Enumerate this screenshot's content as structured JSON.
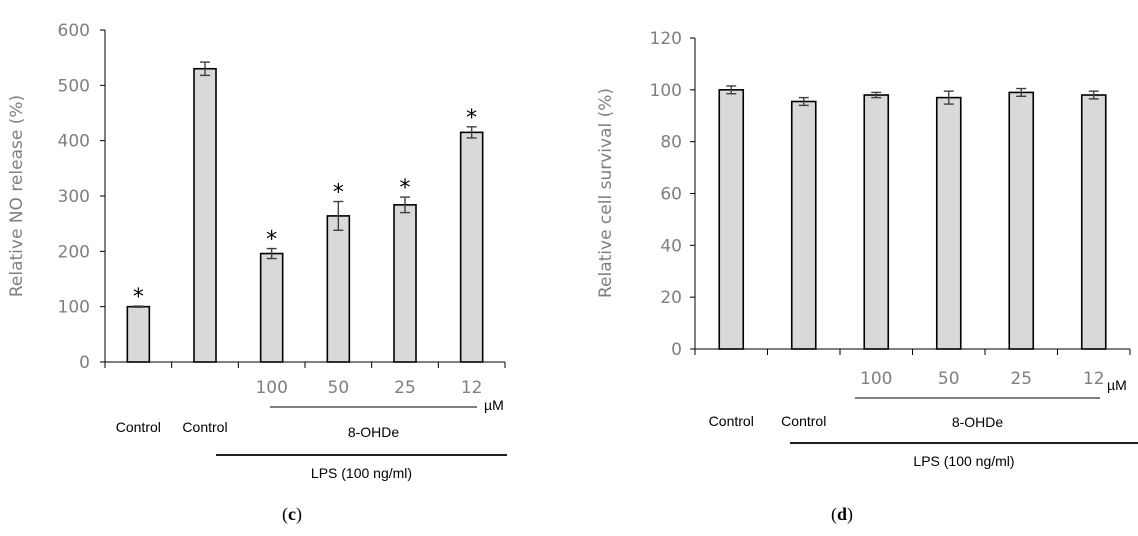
{
  "chart_data": [
    {
      "type": "bar",
      "panel_label": {
        "open": "(",
        "letter": "c",
        "close": ")"
      },
      "ylabel": "Relative NO release (%)",
      "ylim": [
        0,
        600
      ],
      "yticks": [
        0,
        100,
        200,
        300,
        400,
        500,
        600
      ],
      "categories": [
        "Control",
        "Control",
        "100",
        "50",
        "25",
        "12"
      ],
      "values": [
        100,
        530,
        196,
        264,
        284,
        415
      ],
      "errors": [
        1,
        12,
        9,
        26,
        14,
        10
      ],
      "significant": [
        true,
        false,
        true,
        true,
        true,
        true
      ],
      "star_symbol": "*",
      "unit": "µM",
      "treatment_label": "8-OHDe",
      "lps_label": "LPS (100 ng/ml)",
      "grid": false,
      "bar_color": "#d9d9d9"
    },
    {
      "type": "bar",
      "panel_label": {
        "open": "(",
        "letter": "d",
        "close": ")"
      },
      "ylabel": "Relative cell survival (%)",
      "ylim": [
        0,
        120
      ],
      "yticks": [
        0,
        20,
        40,
        60,
        80,
        100,
        120
      ],
      "categories": [
        "Control",
        "Control",
        "100",
        "50",
        "25",
        "12"
      ],
      "values": [
        100,
        95.5,
        98,
        97,
        99,
        98
      ],
      "errors": [
        1.5,
        1.5,
        1,
        2.5,
        1.5,
        1.5
      ],
      "significant": [
        false,
        false,
        false,
        false,
        false,
        false
      ],
      "unit": "µM",
      "treatment_label": "8-OHDe",
      "lps_label": "LPS (100 ng/ml)",
      "grid": false,
      "bar_color": "#d9d9d9"
    }
  ]
}
